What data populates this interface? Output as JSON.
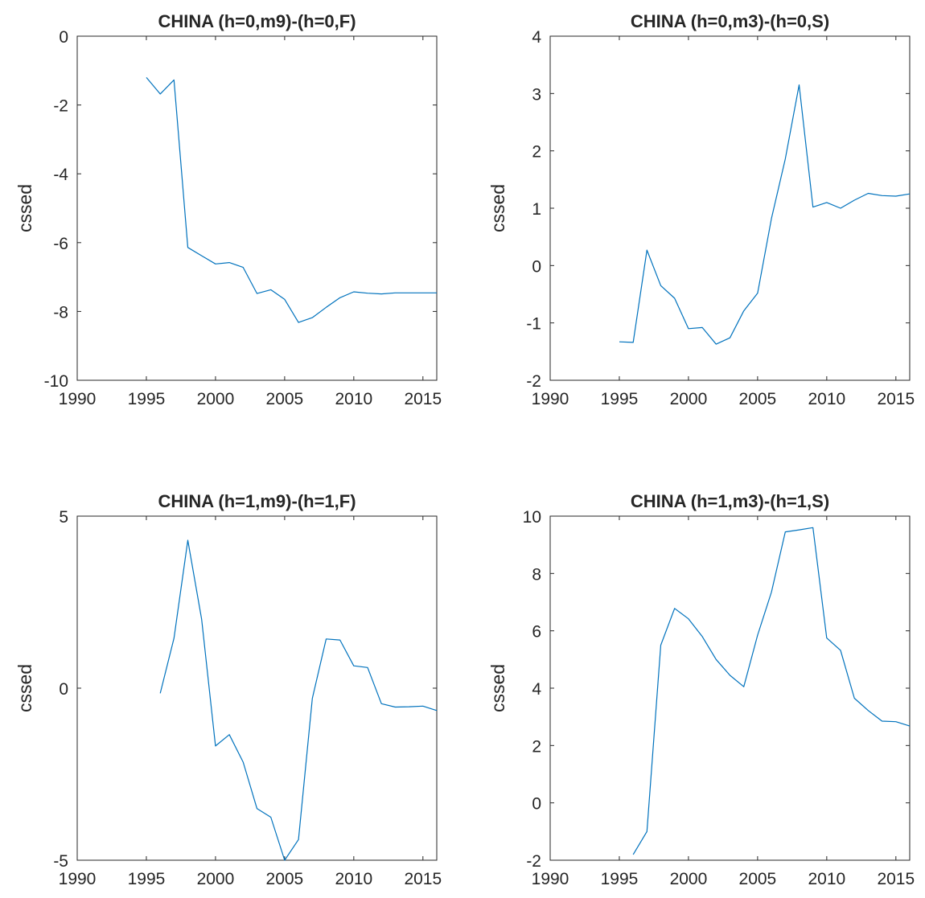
{
  "colors": {
    "line": "#0072BD",
    "axis": "#262626",
    "background": "#ffffff"
  },
  "chart_data": [
    {
      "type": "line",
      "title": "CHINA (h=0,m9)-(h=0,F)",
      "xlabel": "",
      "ylabel": "cssed",
      "xlim": [
        1990,
        2016
      ],
      "ylim": [
        -10,
        0
      ],
      "xticks": [
        1990,
        1995,
        2000,
        2005,
        2010,
        2015
      ],
      "yticks": [
        -10,
        -8,
        -6,
        -4,
        -2,
        0
      ],
      "grid": false,
      "series": [
        {
          "x": [
            1995,
            1996,
            1997,
            1998,
            1999,
            2000,
            2001,
            2002,
            2003,
            2004,
            2005,
            2006,
            2007,
            2008,
            2009,
            2010,
            2011,
            2012,
            2013,
            2014,
            2015,
            2016
          ],
          "values": [
            -1.2,
            -1.68,
            -1.27,
            -6.14,
            -6.38,
            -6.62,
            -6.58,
            -6.72,
            -7.48,
            -7.37,
            -7.65,
            -8.32,
            -8.18,
            -7.88,
            -7.6,
            -7.43,
            -7.47,
            -7.49,
            -7.46,
            -7.46,
            -7.46,
            -7.46
          ]
        }
      ]
    },
    {
      "type": "line",
      "title": "CHINA (h=0,m3)-(h=0,S)",
      "xlabel": "",
      "ylabel": "cssed",
      "xlim": [
        1990,
        2016
      ],
      "ylim": [
        -2,
        4
      ],
      "xticks": [
        1990,
        1995,
        2000,
        2005,
        2010,
        2015
      ],
      "yticks": [
        -2,
        -1,
        0,
        1,
        2,
        3,
        4
      ],
      "grid": false,
      "series": [
        {
          "x": [
            1995,
            1996,
            1997,
            1998,
            1999,
            2000,
            2001,
            2002,
            2003,
            2004,
            2005,
            2006,
            2007,
            2008,
            2009,
            2010,
            2011,
            2012,
            2013,
            2014,
            2015,
            2016
          ],
          "values": [
            -1.33,
            -1.34,
            0.27,
            -0.35,
            -0.57,
            -1.1,
            -1.08,
            -1.37,
            -1.26,
            -0.79,
            -0.48,
            0.82,
            1.86,
            3.15,
            1.02,
            1.1,
            1.0,
            1.14,
            1.26,
            1.22,
            1.21,
            1.25
          ]
        }
      ]
    },
    {
      "type": "line",
      "title": "CHINA (h=1,m9)-(h=1,F)",
      "xlabel": "",
      "ylabel": "cssed",
      "xlim": [
        1990,
        2016
      ],
      "ylim": [
        -5,
        5
      ],
      "xticks": [
        1990,
        1995,
        2000,
        2005,
        2010,
        2015
      ],
      "yticks": [
        -5,
        0,
        5
      ],
      "grid": false,
      "series": [
        {
          "x": [
            1996,
            1997,
            1998,
            1999,
            2000,
            2001,
            2002,
            2003,
            2004,
            2005,
            2006,
            2007,
            2008,
            2009,
            2010,
            2011,
            2012,
            2013,
            2014,
            2015,
            2016
          ],
          "values": [
            -0.15,
            1.45,
            4.3,
            2.0,
            -1.68,
            -1.35,
            -2.15,
            -3.5,
            -3.75,
            -5.0,
            -4.4,
            -0.3,
            1.43,
            1.4,
            0.65,
            0.6,
            -0.45,
            -0.55,
            -0.54,
            -0.52,
            -0.65
          ]
        }
      ]
    },
    {
      "type": "line",
      "title": "CHINA (h=1,m3)-(h=1,S)",
      "xlabel": "",
      "ylabel": "cssed",
      "xlim": [
        1990,
        2016
      ],
      "ylim": [
        -2,
        10
      ],
      "xticks": [
        1990,
        1995,
        2000,
        2005,
        2010,
        2015
      ],
      "yticks": [
        -2,
        0,
        2,
        4,
        6,
        8,
        10
      ],
      "grid": false,
      "series": [
        {
          "x": [
            1996,
            1997,
            1998,
            1999,
            2000,
            2001,
            2002,
            2003,
            2004,
            2005,
            2006,
            2007,
            2008,
            2009,
            2010,
            2011,
            2012,
            2013,
            2014,
            2015,
            2016
          ],
          "values": [
            -1.8,
            -1.0,
            5.5,
            6.78,
            6.42,
            5.8,
            5.0,
            4.45,
            4.05,
            5.85,
            7.35,
            9.45,
            9.52,
            9.6,
            5.75,
            5.32,
            3.65,
            3.22,
            2.85,
            2.83,
            2.68
          ]
        }
      ]
    }
  ]
}
